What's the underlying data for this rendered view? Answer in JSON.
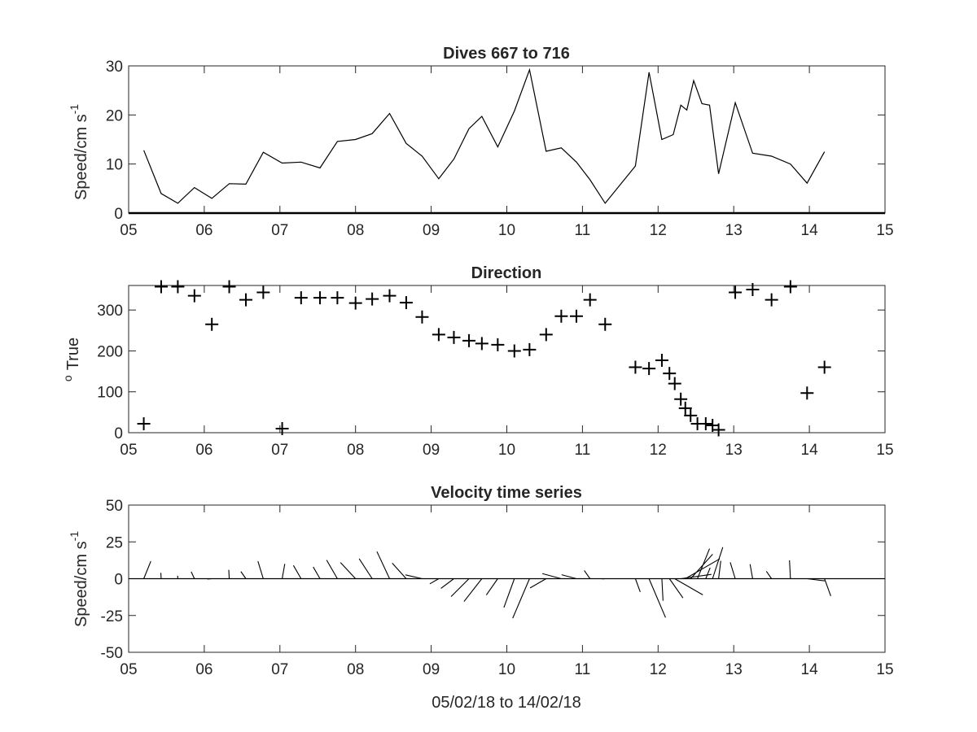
{
  "chart_data": [
    {
      "type": "line",
      "title": "Dives 667 to 716",
      "ylabel": "Speed/cm s",
      "ylabel_sup": "-1",
      "xlim": [
        5,
        15
      ],
      "ylim": [
        0,
        30
      ],
      "xticks": [
        5,
        6,
        7,
        8,
        9,
        10,
        11,
        12,
        13,
        14,
        15
      ],
      "xtick_labels": [
        "05",
        "06",
        "07",
        "08",
        "09",
        "10",
        "11",
        "12",
        "13",
        "14",
        "15"
      ],
      "yticks": [
        0,
        10,
        20,
        30
      ],
      "ytick_labels": [
        "0",
        "10",
        "20",
        "30"
      ],
      "grid": false,
      "color": "#000000",
      "x": [
        5.2,
        5.43,
        5.65,
        5.87,
        6.1,
        6.33,
        6.55,
        6.78,
        7.03,
        7.28,
        7.53,
        7.76,
        8.0,
        8.22,
        8.45,
        8.67,
        8.88,
        9.1,
        9.3,
        9.5,
        9.67,
        9.88,
        10.1,
        10.3,
        10.52,
        10.72,
        10.92,
        11.1,
        11.3,
        11.7,
        11.88,
        12.05,
        12.2,
        12.3,
        12.38,
        12.47,
        12.58,
        12.68,
        12.8,
        13.02,
        13.25,
        13.5,
        13.75,
        13.97,
        14.2
      ],
      "y": [
        12.8,
        4.0,
        2.0,
        5.2,
        3.0,
        6.0,
        5.9,
        12.4,
        10.2,
        10.4,
        9.2,
        14.6,
        15.0,
        16.2,
        20.3,
        14.2,
        11.6,
        7.0,
        11.0,
        17.2,
        19.7,
        13.5,
        20.8,
        29.2,
        12.6,
        13.3,
        10.4,
        6.8,
        2.0,
        9.6,
        28.7,
        15.0,
        16.0,
        22.0,
        21.0,
        27.0,
        22.3,
        22.0,
        8.0,
        22.5,
        12.2,
        11.6,
        10.0,
        6.1,
        12.5
      ]
    },
    {
      "type": "scatter",
      "title": "Direction",
      "ylabel": "True",
      "ylabel_sup": "o",
      "marker": "+",
      "xlim": [
        5,
        15
      ],
      "ylim": [
        0,
        360
      ],
      "xticks": [
        5,
        6,
        7,
        8,
        9,
        10,
        11,
        12,
        13,
        14,
        15
      ],
      "xtick_labels": [
        "05",
        "06",
        "07",
        "08",
        "09",
        "10",
        "11",
        "12",
        "13",
        "14",
        "15"
      ],
      "yticks": [
        0,
        100,
        200,
        300
      ],
      "ytick_labels": [
        "0",
        "100",
        "200",
        "300"
      ],
      "grid": false,
      "color": "#000000",
      "x": [
        5.2,
        5.43,
        5.65,
        5.87,
        6.1,
        6.33,
        6.55,
        6.78,
        7.03,
        7.28,
        7.53,
        7.76,
        8.0,
        8.22,
        8.45,
        8.67,
        8.88,
        9.1,
        9.3,
        9.5,
        9.67,
        9.88,
        10.1,
        10.3,
        10.52,
        10.72,
        10.92,
        11.1,
        11.3,
        11.7,
        11.88,
        12.05,
        12.15,
        12.22,
        12.3,
        12.36,
        12.43,
        12.52,
        12.63,
        12.72,
        12.8,
        13.02,
        13.25,
        13.5,
        13.75,
        13.97,
        14.2
      ],
      "y": [
        22,
        357,
        357,
        335,
        265,
        357,
        325,
        343,
        10,
        330,
        330,
        330,
        317,
        327,
        335,
        318,
        283,
        240,
        233,
        225,
        218,
        215,
        200,
        203,
        240,
        285,
        285,
        325,
        265,
        160,
        157,
        177,
        145,
        120,
        82,
        60,
        42,
        22,
        22,
        18,
        7,
        343,
        350,
        325,
        357,
        97,
        160
      ]
    },
    {
      "type": "quiver",
      "title": "Velocity time series",
      "ylabel": "Speed/cm s",
      "ylabel_sup": "-1",
      "xlabel": "05/02/18 to 14/02/18",
      "xlim": [
        5,
        15
      ],
      "ylim": [
        -50,
        50
      ],
      "xticks": [
        5,
        6,
        7,
        8,
        9,
        10,
        11,
        12,
        13,
        14,
        15
      ],
      "xtick_labels": [
        "05",
        "06",
        "07",
        "08",
        "09",
        "10",
        "11",
        "12",
        "13",
        "14",
        "15"
      ],
      "yticks": [
        -50,
        -25,
        0,
        25,
        50
      ],
      "ytick_labels": [
        "-50",
        "-25",
        "0",
        "25",
        "50"
      ],
      "grid": false,
      "baseline": 0,
      "color": "#000000",
      "x": [
        5.2,
        5.43,
        5.65,
        5.87,
        6.1,
        6.33,
        6.55,
        6.78,
        7.03,
        7.28,
        7.53,
        7.76,
        8.0,
        8.22,
        8.45,
        8.67,
        8.88,
        9.1,
        9.3,
        9.5,
        9.67,
        9.88,
        10.1,
        10.3,
        10.52,
        10.72,
        10.92,
        11.1,
        11.3,
        11.7,
        11.88,
        12.05,
        12.15,
        12.22,
        12.3,
        12.36,
        12.43,
        12.52,
        12.63,
        12.72,
        12.8,
        13.02,
        13.25,
        13.5,
        13.75,
        13.97,
        14.2
      ],
      "speed": [
        12.8,
        4.0,
        2.0,
        5.2,
        3.0,
        6.0,
        5.9,
        12.4,
        10.2,
        10.4,
        9.2,
        14.6,
        15.0,
        16.2,
        20.3,
        14.2,
        11.6,
        7.0,
        11.0,
        17.2,
        19.7,
        13.5,
        20.8,
        29.2,
        12.6,
        13.3,
        10.4,
        6.8,
        2.0,
        9.6,
        28.7,
        15.0,
        16.0,
        22.0,
        21.0,
        27.0,
        22.3,
        22.0,
        8.0,
        22.5,
        12.2,
        11.6,
        10.0,
        6.1,
        12.5,
        12.0,
        12.5
      ],
      "direction": [
        22,
        357,
        357,
        335,
        265,
        357,
        325,
        343,
        10,
        330,
        330,
        330,
        317,
        327,
        335,
        318,
        283,
        240,
        233,
        225,
        218,
        215,
        200,
        203,
        240,
        285,
        285,
        325,
        265,
        160,
        157,
        177,
        145,
        120,
        82,
        60,
        42,
        22,
        22,
        18,
        7,
        343,
        350,
        325,
        357,
        97,
        160
      ]
    }
  ]
}
